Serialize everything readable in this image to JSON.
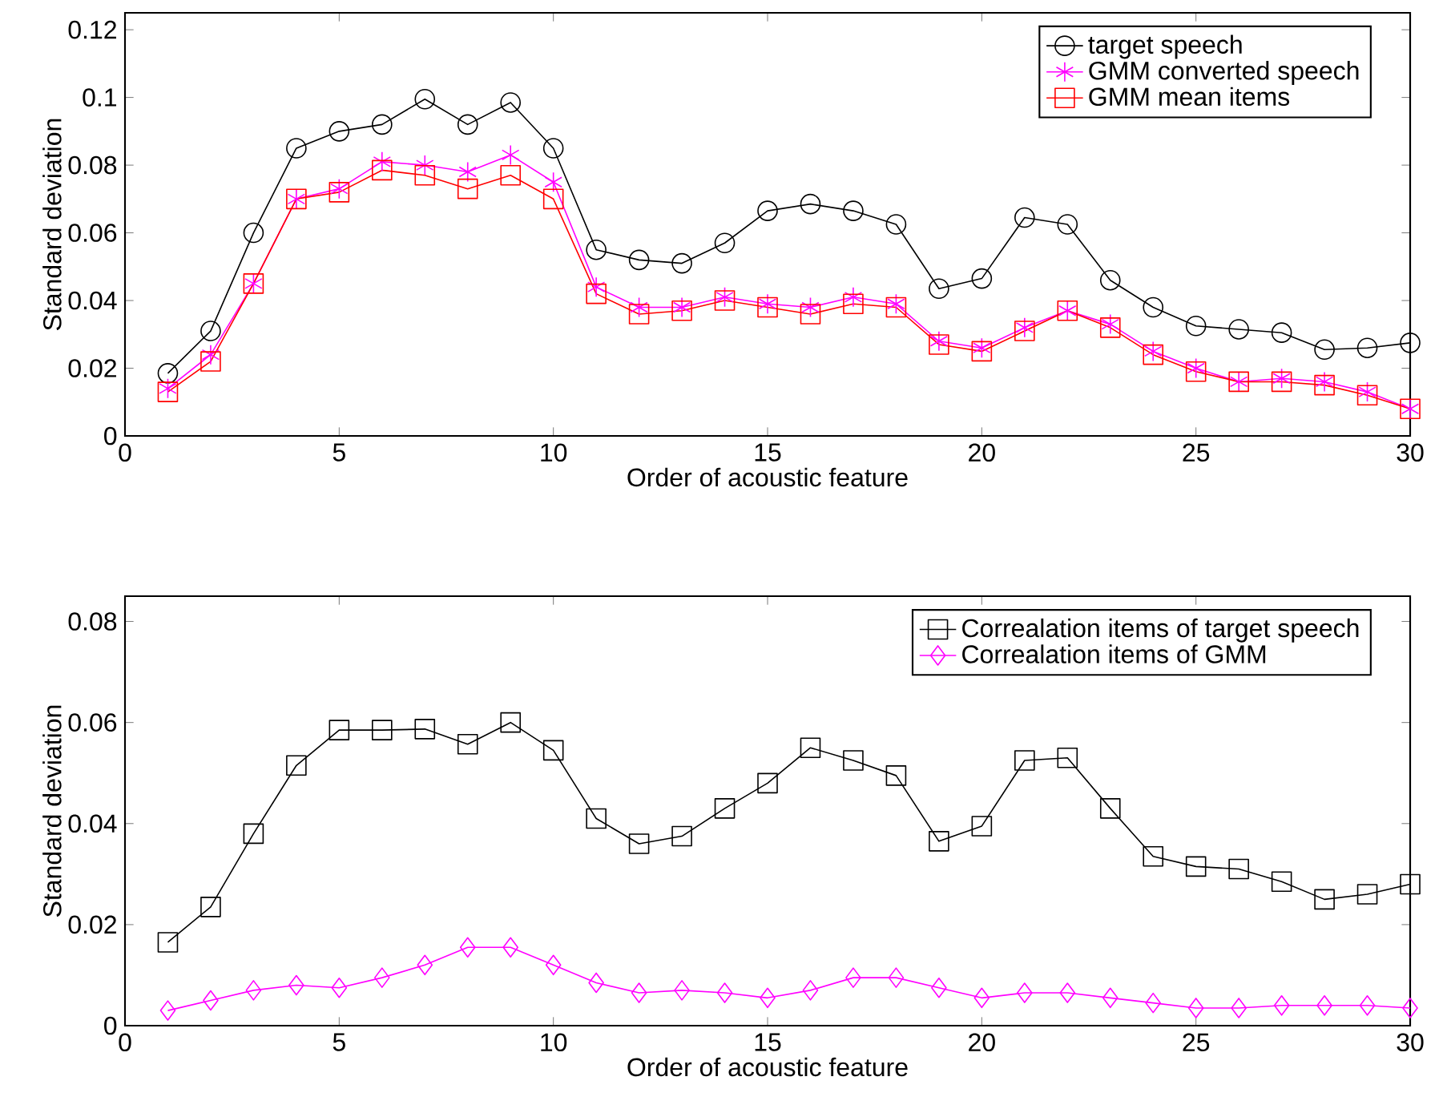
{
  "chart_data": [
    {
      "type": "line",
      "xlabel": "Order of acoustic feature",
      "ylabel": "Standard deviation",
      "x": [
        1,
        2,
        3,
        4,
        5,
        6,
        7,
        8,
        9,
        10,
        11,
        12,
        13,
        14,
        15,
        16,
        17,
        18,
        19,
        20,
        21,
        22,
        23,
        24,
        25,
        26,
        27,
        28,
        29,
        30
      ],
      "xlim": [
        0,
        30
      ],
      "xticks": [
        0,
        5,
        10,
        15,
        20,
        25,
        30
      ],
      "ylim": [
        0,
        0.125
      ],
      "yticks": [
        0,
        0.02,
        0.04,
        0.06,
        0.08,
        0.1,
        0.12
      ],
      "grid": false,
      "legend": "top right",
      "series": [
        {
          "name": "target speech",
          "color": "#000000",
          "marker": "circle",
          "values": [
            0.0185,
            0.031,
            0.06,
            0.085,
            0.09,
            0.092,
            0.0995,
            0.092,
            0.0985,
            0.085,
            0.055,
            0.052,
            0.051,
            0.057,
            0.0665,
            0.0685,
            0.0665,
            0.0625,
            0.0435,
            0.0465,
            0.0645,
            0.0625,
            0.046,
            0.038,
            0.0325,
            0.0315,
            0.0305,
            0.0255,
            0.026,
            0.0275
          ]
        },
        {
          "name": "GMM converted speech",
          "color": "#ff00ff",
          "marker": "cross",
          "values": [
            0.014,
            0.024,
            0.045,
            0.07,
            0.073,
            0.081,
            0.08,
            0.078,
            0.083,
            0.075,
            0.044,
            0.038,
            0.038,
            0.041,
            0.039,
            0.038,
            0.041,
            0.039,
            0.028,
            0.026,
            0.032,
            0.037,
            0.033,
            0.025,
            0.02,
            0.016,
            0.017,
            0.016,
            0.013,
            0.008
          ]
        },
        {
          "name": "GMM mean items",
          "color": "#ff0000",
          "marker": "square",
          "values": [
            0.013,
            0.022,
            0.045,
            0.07,
            0.072,
            0.0785,
            0.077,
            0.073,
            0.077,
            0.07,
            0.042,
            0.036,
            0.037,
            0.04,
            0.038,
            0.036,
            0.039,
            0.038,
            0.027,
            0.025,
            0.031,
            0.037,
            0.032,
            0.024,
            0.019,
            0.016,
            0.016,
            0.015,
            0.012,
            0.008
          ]
        }
      ]
    },
    {
      "type": "line",
      "xlabel": "Order of acoustic feature",
      "ylabel": "Standard deviation",
      "x": [
        1,
        2,
        3,
        4,
        5,
        6,
        7,
        8,
        9,
        10,
        11,
        12,
        13,
        14,
        15,
        16,
        17,
        18,
        19,
        20,
        21,
        22,
        23,
        24,
        25,
        26,
        27,
        28,
        29,
        30
      ],
      "xlim": [
        0,
        30
      ],
      "xticks": [
        0,
        5,
        10,
        15,
        20,
        25,
        30
      ],
      "ylim": [
        0,
        0.085
      ],
      "yticks": [
        0,
        0.02,
        0.04,
        0.06,
        0.08
      ],
      "grid": false,
      "legend": "top right",
      "series": [
        {
          "name": "Correalation items of target speech",
          "color": "#000000",
          "marker": "square",
          "values": [
            0.0165,
            0.0235,
            0.038,
            0.0515,
            0.0585,
            0.0585,
            0.0587,
            0.0557,
            0.06,
            0.0545,
            0.041,
            0.036,
            0.0375,
            0.043,
            0.048,
            0.055,
            0.0525,
            0.0495,
            0.0365,
            0.0395,
            0.0525,
            0.053,
            0.043,
            0.0335,
            0.0315,
            0.031,
            0.0285,
            0.025,
            0.026,
            0.028
          ]
        },
        {
          "name": "Correalation items of GMM",
          "color": "#ff00ff",
          "marker": "diamond",
          "values": [
            0.003,
            0.005,
            0.007,
            0.008,
            0.0075,
            0.0095,
            0.012,
            0.0155,
            0.0155,
            0.012,
            0.0085,
            0.0065,
            0.007,
            0.0065,
            0.0055,
            0.007,
            0.0095,
            0.0095,
            0.0075,
            0.0055,
            0.0065,
            0.0065,
            0.0055,
            0.0045,
            0.0035,
            0.0035,
            0.004,
            0.004,
            0.004,
            0.0035
          ]
        }
      ]
    }
  ]
}
